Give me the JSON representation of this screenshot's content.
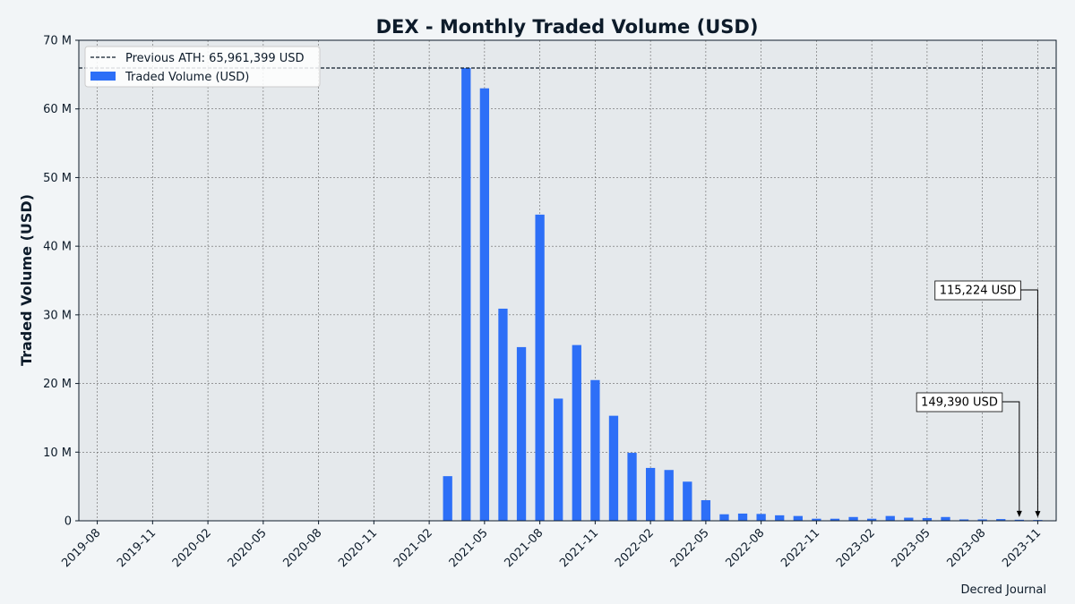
{
  "chart_data": {
    "type": "bar",
    "title": "DEX - Monthly Traded Volume (USD)",
    "ylabel": "Traded Volume (USD)",
    "xlabel": "",
    "ylim": [
      0,
      70000000
    ],
    "y_ticks": [
      0,
      10000000,
      20000000,
      30000000,
      40000000,
      50000000,
      60000000,
      70000000
    ],
    "y_tick_labels": [
      "0",
      "10 M",
      "20 M",
      "30 M",
      "40 M",
      "50 M",
      "60 M",
      "70 M"
    ],
    "x_range": [
      "2019-08",
      "2023-11"
    ],
    "x_tick_labels": [
      "2019-08",
      "2019-11",
      "2020-02",
      "2020-05",
      "2020-08",
      "2020-11",
      "2021-02",
      "2021-05",
      "2021-08",
      "2021-11",
      "2022-02",
      "2022-05",
      "2022-08",
      "2022-11",
      "2023-02",
      "2023-05",
      "2023-08",
      "2023-11"
    ],
    "grid": true,
    "legend_position": "top-left",
    "series": [
      {
        "name": "Traded Volume (USD)",
        "color": "#2d6ff7",
        "x": [
          "2021-03",
          "2021-04",
          "2021-05",
          "2021-06",
          "2021-07",
          "2021-08",
          "2021-09",
          "2021-10",
          "2021-11",
          "2021-12",
          "2022-01",
          "2022-02",
          "2022-03",
          "2022-04",
          "2022-05",
          "2022-06",
          "2022-07",
          "2022-08",
          "2022-09",
          "2022-10",
          "2022-11",
          "2022-12",
          "2023-01",
          "2023-02",
          "2023-03",
          "2023-04",
          "2023-05",
          "2023-06",
          "2023-07",
          "2023-08",
          "2023-09",
          "2023-10",
          "2023-11"
        ],
        "values": [
          6500000,
          65961399,
          63000000,
          30900000,
          25300000,
          44600000,
          17800000,
          25600000,
          20500000,
          15300000,
          9900000,
          7700000,
          7400000,
          5700000,
          3000000,
          950000,
          1050000,
          1000000,
          800000,
          700000,
          300000,
          300000,
          550000,
          300000,
          700000,
          450000,
          400000,
          550000,
          200000,
          200000,
          250000,
          149390,
          115224
        ]
      }
    ],
    "reference_line": {
      "label": "Previous ATH: 65,961,399 USD",
      "value": 65961399,
      "color": "#0d1b2a",
      "style": "dashed"
    },
    "annotations": [
      {
        "text": "149,390 USD",
        "x": "2023-10",
        "value": 149390
      },
      {
        "text": "115,224 USD",
        "x": "2023-11",
        "value": 115224
      }
    ],
    "source": "Decred Journal"
  }
}
